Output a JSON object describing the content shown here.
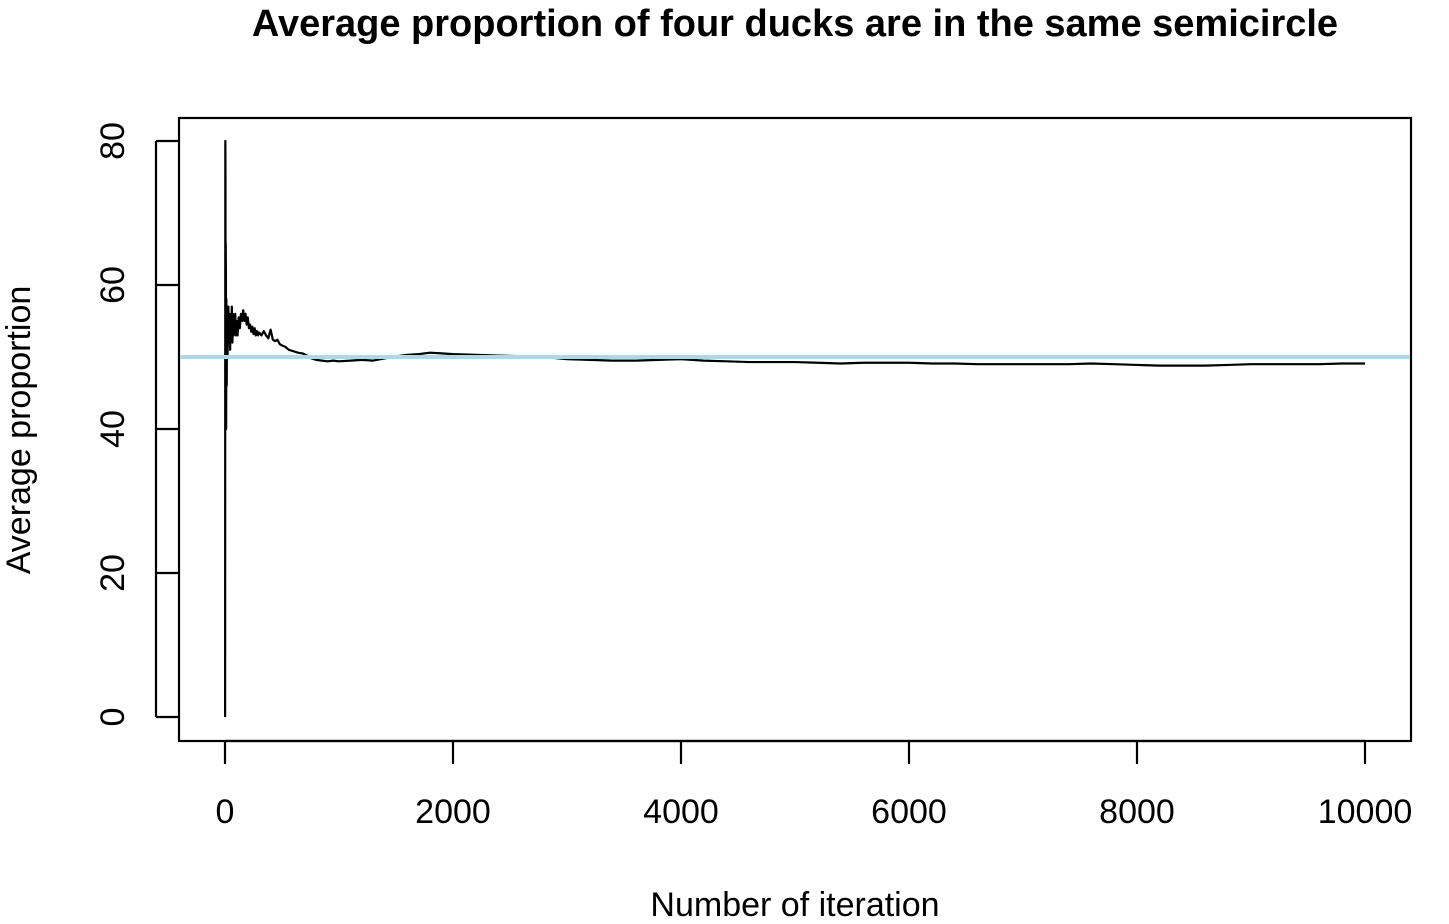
{
  "chart_data": {
    "type": "line",
    "title": "Average proportion of four ducks are in the same semicircle",
    "xlabel": "Number of iteration",
    "ylabel": "Average proportion",
    "xlim": [
      0,
      10000
    ],
    "ylim": [
      0,
      80
    ],
    "x_ticks": [
      0,
      2000,
      4000,
      6000,
      8000,
      10000
    ],
    "x_tick_labels": [
      "0",
      "2000",
      "4000",
      "6000",
      "8000",
      "10000"
    ],
    "y_ticks": [
      0,
      20,
      40,
      60,
      80
    ],
    "y_tick_labels": [
      "0",
      "20",
      "40",
      "60",
      "80"
    ],
    "grid": false,
    "series": [
      {
        "color": "#000000",
        "x": [
          1,
          2,
          3,
          4,
          5,
          6,
          8,
          10,
          12,
          15,
          18,
          22,
          26,
          30,
          35,
          40,
          45,
          50,
          55,
          60,
          65,
          70,
          75,
          80,
          85,
          90,
          95,
          100,
          110,
          120,
          130,
          140,
          150,
          160,
          170,
          180,
          190,
          200,
          210,
          220,
          230,
          240,
          250,
          260,
          270,
          280,
          290,
          300,
          320,
          340,
          360,
          380,
          400,
          420,
          440,
          460,
          480,
          500,
          530,
          560,
          600,
          640,
          680,
          720,
          760,
          800,
          850,
          900,
          950,
          1000,
          1100,
          1200,
          1300,
          1400,
          1500,
          1600,
          1700,
          1800,
          1900,
          2000,
          2200,
          2400,
          2600,
          2800,
          3000,
          3200,
          3400,
          3600,
          3800,
          4000,
          4200,
          4400,
          4600,
          4800,
          5000,
          5200,
          5400,
          5600,
          5800,
          6000,
          6200,
          6400,
          6600,
          6800,
          7000,
          7200,
          7400,
          7600,
          7800,
          8000,
          8200,
          8400,
          8600,
          8800,
          9000,
          9200,
          9400,
          9600,
          9800,
          10000
        ],
        "y": [
          0,
          50,
          80,
          75,
          60,
          66,
          62,
          40,
          58,
          46,
          55,
          50,
          53,
          57,
          52,
          56,
          51,
          55,
          54,
          57,
          52,
          56,
          53,
          55,
          54,
          56,
          53,
          55,
          53,
          55.5,
          54,
          56,
          55,
          56.5,
          55,
          56,
          54.5,
          55.5,
          54,
          54.5,
          53.5,
          54.2,
          53.2,
          54,
          53,
          53.6,
          53,
          53.4,
          53,
          53.6,
          53,
          52.6,
          53.8,
          52.4,
          52.2,
          52.4,
          51.8,
          51.6,
          51.4,
          51.0,
          50.8,
          50.6,
          50.5,
          50.2,
          49.8,
          49.6,
          49.5,
          49.4,
          49.5,
          49.4,
          49.5,
          49.6,
          49.5,
          49.8,
          50.1,
          50.3,
          50.4,
          50.6,
          50.5,
          50.4,
          50.3,
          50.2,
          50.1,
          50.0,
          49.7,
          49.6,
          49.5,
          49.5,
          49.6,
          49.7,
          49.5,
          49.4,
          49.3,
          49.3,
          49.3,
          49.2,
          49.1,
          49.2,
          49.2,
          49.2,
          49.1,
          49.1,
          49.0,
          49.0,
          49.0,
          49.0,
          49.0,
          49.1,
          49.0,
          48.9,
          48.8,
          48.8,
          48.8,
          48.9,
          49.0,
          49.0,
          49.0,
          49.0,
          49.1,
          49.1
        ]
      },
      {
        "color": "#add8e6",
        "type": "hline",
        "y": 50
      }
    ]
  }
}
